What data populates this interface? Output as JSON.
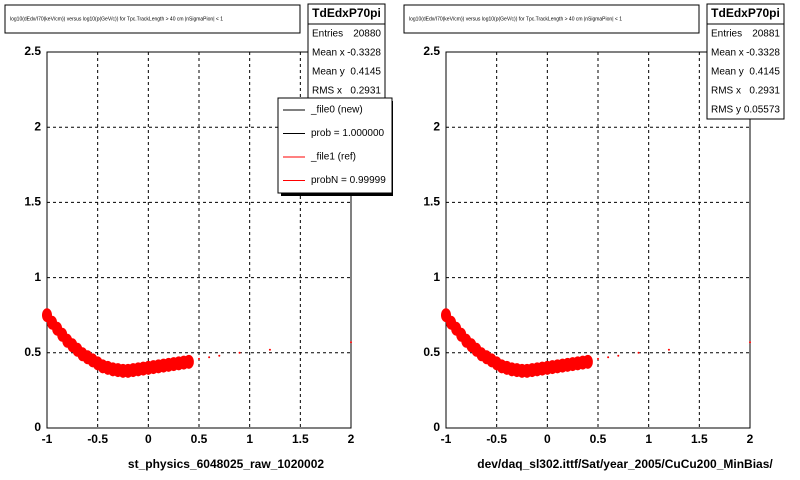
{
  "chart_data": [
    {
      "type": "scatter",
      "title": "log10(dEdx/I70(keV/cm)) versus log10(p(GeV/c)) for Tpc.TrackLength > 40 cm |nSigmaPion| < 1",
      "xlabel": "st_physics_6048025_raw_1020002",
      "x": [
        -1,
        -0.95,
        -0.9,
        -0.85,
        -0.8,
        -0.75,
        -0.7,
        -0.65,
        -0.6,
        -0.55,
        -0.5,
        -0.45,
        -0.4,
        -0.35,
        -0.3,
        -0.25,
        -0.2,
        -0.15,
        -0.1,
        -0.05,
        0,
        0.05,
        0.1,
        0.15,
        0.2,
        0.25,
        0.3,
        0.35,
        0.4,
        0.5,
        0.6,
        0.7,
        0.9,
        1.2,
        2
      ],
      "y": [
        0.75,
        0.7,
        0.66,
        0.62,
        0.58,
        0.55,
        0.52,
        0.49,
        0.47,
        0.45,
        0.43,
        0.41,
        0.4,
        0.39,
        0.385,
        0.38,
        0.38,
        0.385,
        0.39,
        0.395,
        0.4,
        0.405,
        0.41,
        0.415,
        0.42,
        0.425,
        0.43,
        0.435,
        0.44,
        0.46,
        0.47,
        0.48,
        0.5,
        0.52,
        0.57
      ],
      "color": "#ff0000",
      "xlim": [
        -1,
        2
      ],
      "xticks": [
        -1,
        -0.5,
        0,
        0.5,
        1,
        1.5,
        2
      ],
      "ylim": [
        0,
        2.5
      ],
      "yticks": [
        0,
        0.5,
        1,
        1.5,
        2,
        2.5
      ],
      "grid": true,
      "stats": {
        "name": "TdEdxP70pi",
        "rows": [
          {
            "label": "Entries",
            "value": 20880
          },
          {
            "label": "Mean x",
            "value": -0.3328
          },
          {
            "label": "Mean y",
            "value": 0.4145
          },
          {
            "label": "RMS x",
            "value": 0.2931
          }
        ]
      },
      "legend": [
        {
          "text": "_file0 (new)",
          "color": "#000000"
        },
        {
          "text": "prob = 1.000000",
          "color": "#000000"
        },
        {
          "text": "_file1 (ref)",
          "color": "#ff0000"
        },
        {
          "text": "probN = 0.99999",
          "color": "#ff0000"
        }
      ]
    },
    {
      "type": "scatter",
      "title": "log10(dEdx/I70(keV/cm)) versus log10(p(GeV/c)) for Tpc.TrackLength > 40 cm |nSigmaPion| < 1",
      "xlabel": "dev/daq_sl302.ittf/Sat/year_2005/CuCu200_MinBias/",
      "x": [
        -1,
        -0.95,
        -0.9,
        -0.85,
        -0.8,
        -0.75,
        -0.7,
        -0.65,
        -0.6,
        -0.55,
        -0.5,
        -0.45,
        -0.4,
        -0.35,
        -0.3,
        -0.25,
        -0.2,
        -0.15,
        -0.1,
        -0.05,
        0,
        0.05,
        0.1,
        0.15,
        0.2,
        0.25,
        0.3,
        0.35,
        0.4,
        0.5,
        0.6,
        0.7,
        0.9,
        1.2,
        2
      ],
      "y": [
        0.75,
        0.7,
        0.66,
        0.62,
        0.58,
        0.55,
        0.52,
        0.49,
        0.47,
        0.45,
        0.43,
        0.41,
        0.4,
        0.39,
        0.385,
        0.38,
        0.38,
        0.385,
        0.39,
        0.395,
        0.4,
        0.405,
        0.41,
        0.415,
        0.42,
        0.425,
        0.43,
        0.435,
        0.44,
        0.46,
        0.47,
        0.48,
        0.5,
        0.52,
        0.57
      ],
      "color": "#ff0000",
      "xlim": [
        -1,
        2
      ],
      "xticks": [
        -1,
        -0.5,
        0,
        0.5,
        1,
        1.5,
        2
      ],
      "ylim": [
        0,
        2.5
      ],
      "yticks": [
        0,
        0.5,
        1,
        1.5,
        2,
        2.5
      ],
      "grid": true,
      "stats": {
        "name": "TdEdxP70pi",
        "rows": [
          {
            "label": "Entries",
            "value": 20881
          },
          {
            "label": "Mean x",
            "value": -0.3328
          },
          {
            "label": "Mean y",
            "value": 0.4145
          },
          {
            "label": "RMS x",
            "value": 0.2931
          },
          {
            "label": "RMS y",
            "value": 0.05573
          }
        ]
      }
    }
  ]
}
